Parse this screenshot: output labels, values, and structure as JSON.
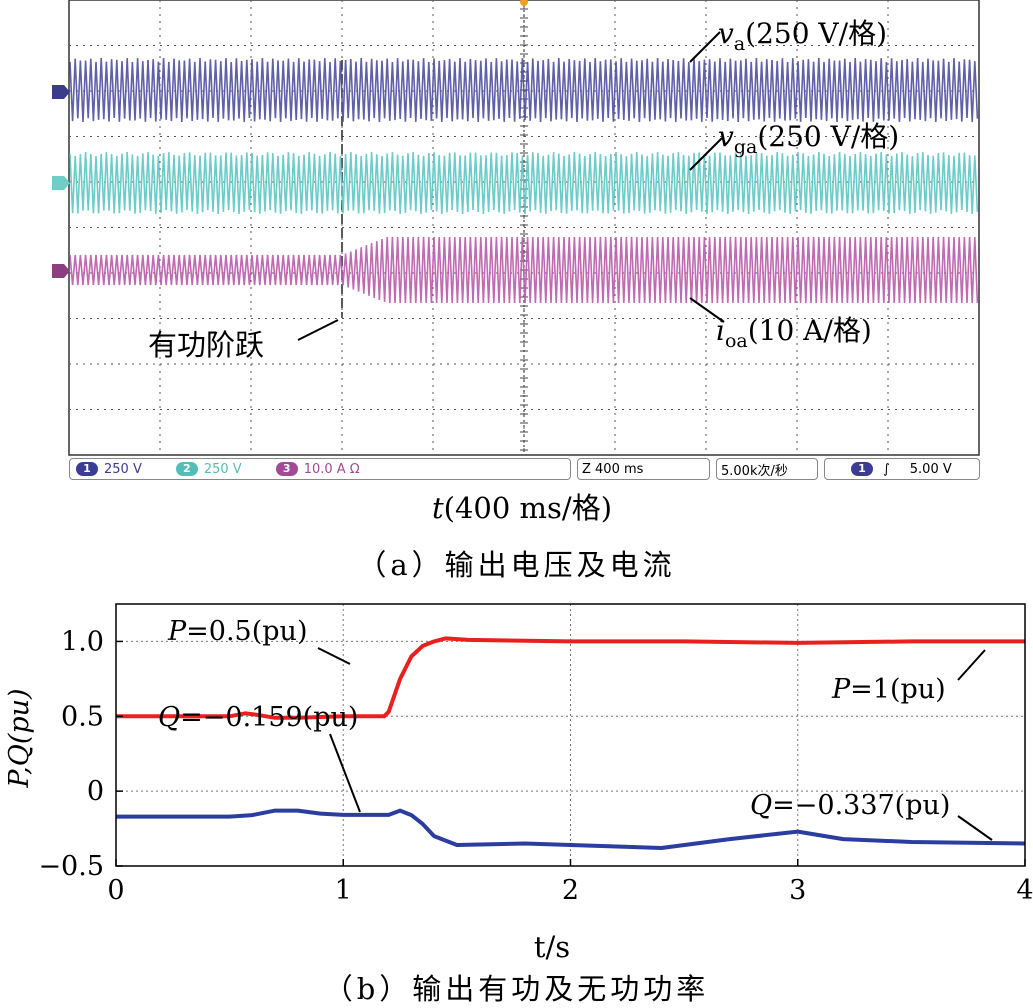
{
  "panel_a": {
    "caption": "（a）输出电压及电流",
    "xlabel_var": "t",
    "xlabel_rest": "(400 ms/格)",
    "traces": [
      {
        "name": "v",
        "sub": "a",
        "scale": "(250 V/格)",
        "color": "#4f4fa0"
      },
      {
        "name": "v",
        "sub": "ga",
        "scale": "(250 V/格)",
        "color": "#5cc6c2"
      },
      {
        "name": "i",
        "sub": "oa",
        "scale": "(10 A/格)",
        "color": "#b85aa8"
      }
    ],
    "step_label": "有功阶跃",
    "status_bar": {
      "channels": [
        {
          "num": "1",
          "value": "250 V",
          "color": "#3c3c96"
        },
        {
          "num": "2",
          "value": "250 V",
          "color": "#55bdb7"
        },
        {
          "num": "3",
          "value": "10.0 A  Ω",
          "color": "#a24a98"
        }
      ],
      "timebase": "Z 400 ms",
      "sample_rate": "5.00k次/秒",
      "trigger_channel": "1",
      "trigger_symbol": "∫",
      "trigger_level": "5.00 V"
    }
  },
  "chart_data": {
    "type": "line",
    "title": "（b）输出有功及无功功率",
    "xlabel": "t/s",
    "ylabel": "P,Q(pu)",
    "xlim": [
      0,
      4
    ],
    "ylim": [
      -0.5,
      1.25
    ],
    "grid": true,
    "x_ticks": [
      "0",
      "1",
      "2",
      "3",
      "4"
    ],
    "y_ticks": [
      "−0.5",
      "0",
      "0.5",
      "1.0"
    ],
    "y_tick_values": [
      -0.5,
      0,
      0.5,
      1.0
    ],
    "series": [
      {
        "name": "P",
        "color": "#e8211f",
        "x": [
          0,
          0.5,
          0.57,
          0.62,
          0.7,
          0.8,
          1.0,
          1.18,
          1.2,
          1.25,
          1.3,
          1.35,
          1.4,
          1.45,
          1.55,
          2.0,
          2.5,
          3.0,
          3.5,
          4.0
        ],
        "y": [
          0.5,
          0.5,
          0.52,
          0.51,
          0.49,
          0.49,
          0.5,
          0.5,
          0.53,
          0.75,
          0.9,
          0.97,
          1.0,
          1.02,
          1.01,
          1.0,
          1.0,
          0.99,
          1.0,
          1.0
        ]
      },
      {
        "name": "Q",
        "color": "#2b3ea0",
        "x": [
          0,
          0.5,
          0.6,
          0.7,
          0.8,
          0.9,
          1.0,
          1.2,
          1.25,
          1.3,
          1.35,
          1.4,
          1.5,
          1.8,
          2.0,
          2.4,
          2.7,
          3.0,
          3.2,
          3.5,
          4.0
        ],
        "y": [
          -0.17,
          -0.17,
          -0.16,
          -0.13,
          -0.13,
          -0.15,
          -0.159,
          -0.159,
          -0.13,
          -0.16,
          -0.22,
          -0.3,
          -0.36,
          -0.35,
          -0.36,
          -0.38,
          -0.32,
          -0.27,
          -0.32,
          -0.34,
          -0.35
        ]
      }
    ],
    "annotations": [
      {
        "series": "P",
        "var": "P",
        "rest": "=0.5(pu)"
      },
      {
        "series": "Q",
        "var": "Q",
        "rest": "=−0.159(pu)"
      },
      {
        "series": "P",
        "var": "P",
        "rest": "=1(pu)"
      },
      {
        "series": "Q",
        "var": "Q",
        "rest": "=−0.337(pu)"
      }
    ]
  }
}
